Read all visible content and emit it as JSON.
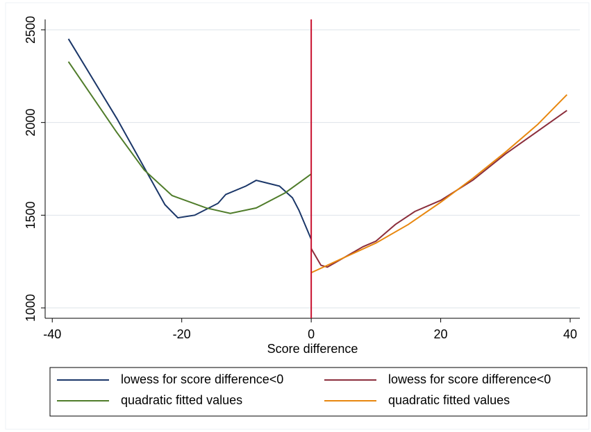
{
  "chart_data": {
    "type": "line",
    "xlabel": "Score difference",
    "xlim": [
      -41.1,
      41.5
    ],
    "ylim": [
      944,
      2556
    ],
    "xticks": [
      -40,
      -20,
      0,
      20,
      40
    ],
    "yticks": [
      1000,
      1500,
      2000,
      2500
    ],
    "grid": true,
    "vline": {
      "x": 0,
      "color": "#c8102e"
    },
    "series": [
      {
        "name": "lowess for score difference<0",
        "color": "#1a3668",
        "x": [
          -37.5,
          -30,
          -22.6,
          -20.6,
          -18,
          -14.4,
          -13.2,
          -10.1,
          -8.5,
          -4.9,
          -2.9,
          -1.9,
          0
        ],
        "values": [
          2451,
          2020,
          1557,
          1486,
          1500,
          1564,
          1612,
          1657,
          1688,
          1657,
          1594,
          1527,
          1370
        ]
      },
      {
        "name": "lowess for score difference<0",
        "color": "#8b2e3c",
        "x": [
          0,
          0.5,
          1.5,
          2.5,
          5,
          8,
          10,
          13,
          16,
          20,
          25,
          30,
          39.5
        ],
        "values": [
          1320,
          1290,
          1230,
          1220,
          1270,
          1330,
          1360,
          1450,
          1520,
          1580,
          1690,
          1830,
          2065
        ]
      },
      {
        "name": "quadratic fitted values",
        "color": "#4f7c2a",
        "x": [
          -37.5,
          -30.1,
          -25.8,
          -21.5,
          -16.2,
          -12.5,
          -8.5,
          -4,
          0
        ],
        "values": [
          2328,
          1950,
          1744,
          1606,
          1539,
          1510,
          1539,
          1621,
          1722
        ]
      },
      {
        "name": "quadratic fitted values",
        "color": "#e8870e",
        "x": [
          0,
          5,
          10,
          15,
          20,
          25,
          30,
          35,
          39.5
        ],
        "values": [
          1190,
          1270,
          1350,
          1450,
          1570,
          1700,
          1840,
          1990,
          2150
        ]
      }
    ]
  }
}
